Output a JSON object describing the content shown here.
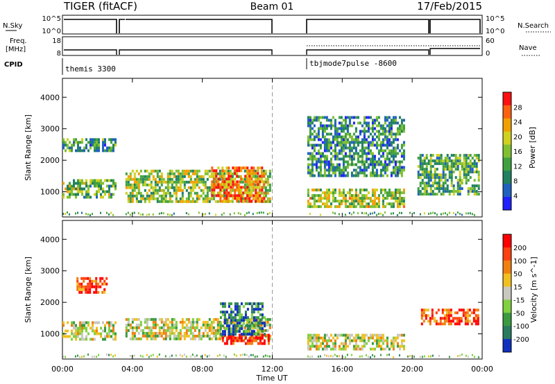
{
  "header": {
    "radar": "TIGER (fitACF)",
    "beam": "Beam 01",
    "date": "17/Feb/2015"
  },
  "top_panels": {
    "nsky": {
      "label": "N.Sky",
      "tick_top": "10^5",
      "tick_bottom": "10^0"
    },
    "nsearch": {
      "label": "N.Search",
      "tick_top": "10^5",
      "tick_bottom": "10^0"
    },
    "freq": {
      "label_line1": "Freq.",
      "label_line2": "[MHz]",
      "tick_top": "18",
      "tick_bottom": "8"
    },
    "nave": {
      "label": "Nave",
      "tick_top": "60",
      "tick_bottom": "0"
    },
    "cpid": {
      "label": "CPID",
      "modes": [
        "themis 3300",
        "tbjmode7pulse -8600"
      ]
    }
  },
  "chart_data": [
    {
      "type": "heatmap",
      "name": "power",
      "ylabel": "Slant Range [km]",
      "ylim": [
        200,
        4600
      ],
      "xlim_hours": [
        0,
        24
      ],
      "yticks": [
        "1000",
        "2000",
        "3000",
        "4000"
      ],
      "colorbar": {
        "label": "Power [dB]",
        "ticks": [
          "28",
          "24",
          "20",
          "16",
          "12",
          "8",
          "4"
        ],
        "colors": [
          "#2020ff",
          "#2060c0",
          "#208060",
          "#40a040",
          "#80c030",
          "#d0d020",
          "#f0a000",
          "#ff6010",
          "#ff1010"
        ]
      },
      "features": [
        {
          "t0": 0.0,
          "t1": 3.0,
          "r0": 800,
          "r1": 1400,
          "level": 0.45
        },
        {
          "t0": 0.0,
          "t1": 3.0,
          "r0": 2300,
          "r1": 2700,
          "level": 0.35
        },
        {
          "t0": 3.6,
          "t1": 11.9,
          "r0": 700,
          "r1": 1700,
          "level": 0.5
        },
        {
          "t0": 8.5,
          "t1": 11.5,
          "r0": 700,
          "r1": 1800,
          "level": 0.8
        },
        {
          "t0": 14.0,
          "t1": 19.5,
          "r0": 500,
          "r1": 1100,
          "level": 0.55
        },
        {
          "t0": 14.0,
          "t1": 19.5,
          "r0": 1500,
          "r1": 3400,
          "level": 0.3
        },
        {
          "t0": 20.3,
          "t1": 23.8,
          "r0": 900,
          "r1": 2200,
          "level": 0.4
        }
      ]
    },
    {
      "type": "heatmap",
      "name": "velocity",
      "ylabel": "Slant Range [km]",
      "ylim": [
        200,
        4600
      ],
      "xlim_hours": [
        0,
        24
      ],
      "yticks": [
        "1000",
        "2000",
        "3000",
        "4000"
      ],
      "xticks": [
        "00:00",
        "04:00",
        "08:00",
        "12:00",
        "16:00",
        "20:00",
        "00:00"
      ],
      "xlabel": "Time UT",
      "colorbar": {
        "label": "Velocity [m s^-1]",
        "ticks": [
          "200",
          "100",
          "50",
          "15",
          "-15",
          "-50",
          "-100",
          "-200"
        ],
        "colors": [
          "#1030c0",
          "#2a7a60",
          "#3a9a40",
          "#80d040",
          "#c8c8c0",
          "#f0c020",
          "#f08010",
          "#ff4010",
          "#ff0000"
        ]
      },
      "features": [
        {
          "t0": 0.0,
          "t1": 3.0,
          "r0": 800,
          "r1": 1400,
          "level": 0.5
        },
        {
          "t0": 0.8,
          "t1": 2.5,
          "r0": 2300,
          "r1": 2800,
          "level": 0.85
        },
        {
          "t0": 3.6,
          "t1": 11.9,
          "r0": 800,
          "r1": 1500,
          "level": 0.5
        },
        {
          "t0": 9.0,
          "t1": 11.8,
          "r0": 700,
          "r1": 1000,
          "level": 0.95
        },
        {
          "t0": 9.0,
          "t1": 11.5,
          "r0": 1000,
          "r1": 2000,
          "level": 0.15
        },
        {
          "t0": 14.0,
          "t1": 19.5,
          "r0": 500,
          "r1": 1000,
          "level": 0.5
        },
        {
          "t0": 20.5,
          "t1": 23.8,
          "r0": 1300,
          "r1": 1800,
          "level": 0.85
        }
      ]
    }
  ],
  "colors": {
    "axis": "#000000",
    "background": "#ffffff"
  }
}
